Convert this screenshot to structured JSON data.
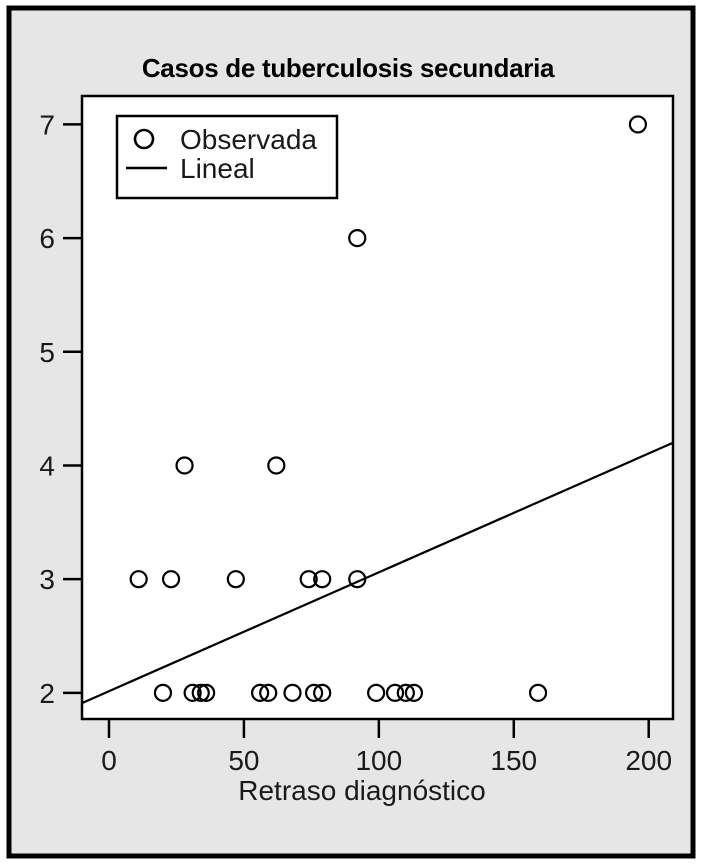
{
  "figure": {
    "background_color": "#e6e6e6",
    "plot_background_color": "#ffffff",
    "frame_color": "#000000",
    "text_color": "#1a1a1a"
  },
  "chart_data": {
    "type": "scatter",
    "title": "Casos de tuberculosis secundaria",
    "xlabel": "Retraso diagnóstico",
    "ylabel": "",
    "xlim": [
      -10,
      209
    ],
    "ylim": [
      1.77,
      7.25
    ],
    "xticks": [
      0,
      50,
      100,
      150,
      200
    ],
    "yticks": [
      2,
      3,
      4,
      5,
      6,
      7
    ],
    "grid": false,
    "legend": {
      "position": "top-left",
      "entries": [
        {
          "label": "Observada",
          "marker": "circle"
        },
        {
          "label": "Lineal",
          "marker": "line"
        }
      ]
    },
    "series": [
      {
        "name": "Observada",
        "type": "scatter",
        "marker": "open-circle",
        "color": "#000000",
        "points": [
          [
            20,
            2
          ],
          [
            31,
            2
          ],
          [
            34,
            2
          ],
          [
            36,
            2
          ],
          [
            56,
            2
          ],
          [
            59,
            2
          ],
          [
            68,
            2
          ],
          [
            76,
            2
          ],
          [
            79,
            2
          ],
          [
            99,
            2
          ],
          [
            106,
            2
          ],
          [
            110,
            2
          ],
          [
            113,
            2
          ],
          [
            159,
            2
          ],
          [
            11,
            3
          ],
          [
            23,
            3
          ],
          [
            47,
            3
          ],
          [
            74,
            3
          ],
          [
            79,
            3
          ],
          [
            92,
            3
          ],
          [
            28,
            4
          ],
          [
            62,
            4
          ],
          [
            92,
            6
          ],
          [
            196,
            7
          ]
        ]
      },
      {
        "name": "Lineal",
        "type": "line",
        "color": "#000000",
        "points": [
          [
            -10,
            1.91
          ],
          [
            209,
            4.2
          ]
        ]
      }
    ]
  }
}
